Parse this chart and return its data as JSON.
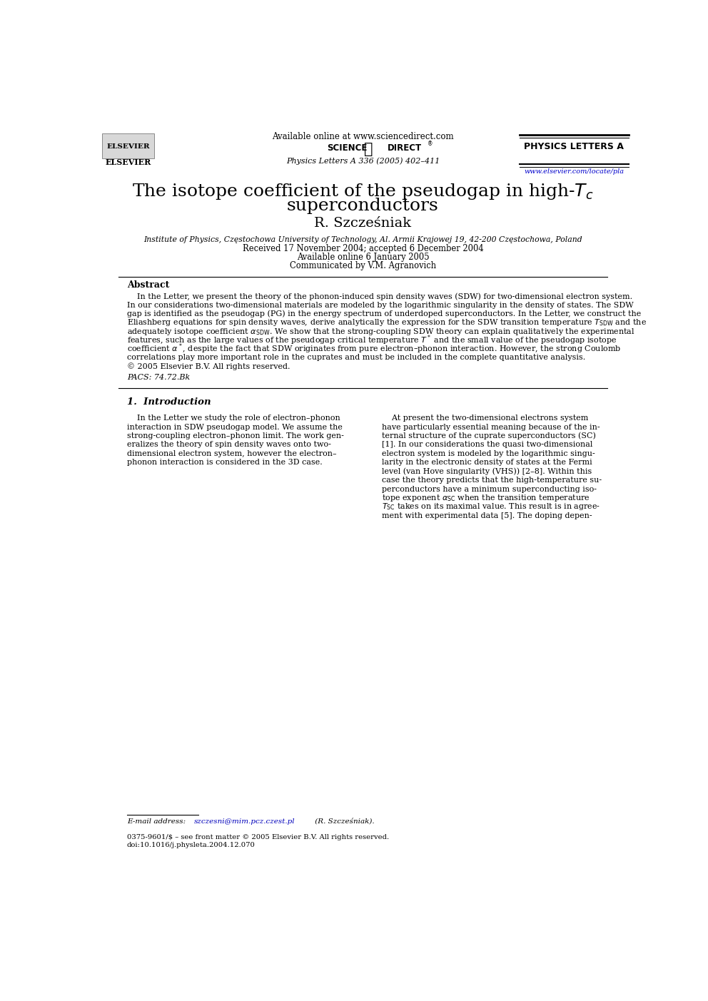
{
  "bg_color": "#ffffff",
  "page_width": 9.92,
  "page_height": 14.03,
  "header": {
    "available_online": "Available online at www.sciencedirect.com",
    "journal_name": "PHYSICS LETTERS A",
    "journal_cite": "Physics Letters A 336 (2005) 402–411",
    "url": "www.elsevier.com/locate/pla"
  },
  "title_line1": "The isotope coefficient of the pseudogap in high-$T_c$",
  "title_line2": "superconductors",
  "author": "R. Szcześniak",
  "affiliation": "Institute of Physics, Częstochowa University of Technology, Al. Armii Krajowej 19, 42-200 Częstochowa, Poland",
  "received": "Received 17 November 2004; accepted 6 December 2004",
  "available_online_date": "Available online 6 January 2005",
  "communicated": "Communicated by V.M. Agranovich",
  "abstract_title": "Abstract",
  "pacs": "PACS: 74.72.Bk",
  "section1_title": "1.  Introduction",
  "email_prefix": "E-mail address: ",
  "email_addr": "szczesni@mim.pcz.czest.pl",
  "email_suffix": " (R. Szcześniak).",
  "copyright_line1": "0375-9601/$ – see front matter © 2005 Elsevier B.V. All rights reserved.",
  "copyright_line2": "doi:10.1016/j.physleta.2004.12.070",
  "abstract_lines": [
    "    In the Letter, we present the theory of the phonon-induced spin density waves (SDW) for two-dimensional electron system.",
    "In our considerations two-dimensional materials are modeled by the logarithmic singularity in the density of states. The SDW",
    "gap is identified as the pseudogap (PG) in the energy spectrum of underdoped superconductors. In the Letter, we construct the",
    "Eliashberg equations for spin density waves, derive analytically the expression for the SDW transition temperature $T_{\\rm SDW}$ and the",
    "adequately isotope coefficient $\\alpha_{\\rm SDW}$. We show that the strong-coupling SDW theory can explain qualitatively the experimental",
    "features, such as the large values of the pseudogap critical temperature $T^*$ and the small value of the pseudogap isotope",
    "coefficient $\\alpha^*$, despite the fact that SDW originates from pure electron–phonon interaction. However, the strong Coulomb",
    "correlations play more important role in the cuprates and must be included in the complete quantitative analysis.",
    "© 2005 Elsevier B.V. All rights reserved."
  ],
  "left_col_lines": [
    "    In the Letter we study the role of electron–phonon",
    "interaction in SDW pseudogap model. We assume the",
    "strong-coupling electron–phonon limit. The work gen-",
    "eralizes the theory of spin density waves onto two-",
    "dimensional electron system, however the electron–",
    "phonon interaction is considered in the 3D case."
  ],
  "right_col_lines": [
    "    At present the two-dimensional electrons system",
    "have particularly essential meaning because of the in-",
    "ternal structure of the cuprate superconductors (SC)",
    "[1]. In our considerations the quasi two-dimensional",
    "electron system is modeled by the logarithmic singu-",
    "larity in the electronic density of states at the Fermi",
    "level (van Hove singularity (VHS)) [2–8]. Within this",
    "case the theory predicts that the high-temperature su-",
    "perconductors have a minimum superconducting iso-",
    "tope exponent $\\alpha_{\\rm SC}$ when the transition temperature",
    "$T_{\\rm SC}$ takes on its maximal value. This result is in agree-",
    "ment with experimental data [5]. The doping depen-"
  ]
}
